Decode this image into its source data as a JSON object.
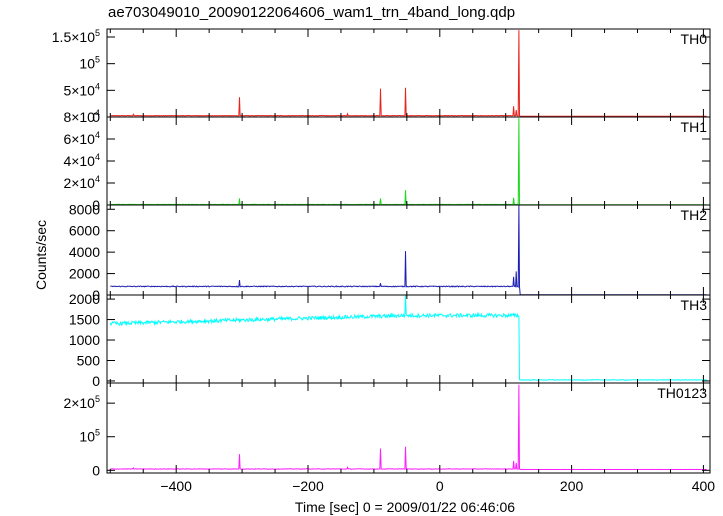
{
  "chart_data": {
    "type": "line",
    "title": "ae703049010_20090122064606_wam1_trn_4band_long.qdp",
    "xlabel": "Time [sec] 0 = 2009/01/22 06:46:06",
    "ylabel": "Counts/sec",
    "xlim": [
      -505,
      410
    ],
    "x_ticks": [
      {
        "value": -400,
        "label": "−400"
      },
      {
        "value": -200,
        "label": "−200"
      },
      {
        "value": 0,
        "label": "0"
      },
      {
        "value": 200,
        "label": "200"
      },
      {
        "value": 400,
        "label": "400"
      }
    ],
    "grid": false,
    "legend": "none",
    "panels": [
      {
        "name": "TH0",
        "color": "#e8231e",
        "ylim": [
          0,
          165000
        ],
        "y_ticks": [
          {
            "value": 0,
            "base": "0",
            "exp": ""
          },
          {
            "value": 50000,
            "base": "5×10",
            "exp": "4"
          },
          {
            "value": 100000,
            "base": "10",
            "exp": "5"
          },
          {
            "value": 150000,
            "base": "1.5×10",
            "exp": "5"
          }
        ],
        "baseline": 2500,
        "noise": 400,
        "step_time": 122,
        "after": 1500,
        "spikes": [
          [
            -465,
            5000
          ],
          [
            -304,
            37000
          ],
          [
            -140,
            6000
          ],
          [
            -90,
            53000
          ],
          [
            -52,
            55000
          ],
          [
            112,
            20000
          ],
          [
            116,
            13000
          ],
          [
            120,
            163000
          ]
        ]
      },
      {
        "name": "TH1",
        "color": "#1ed81e",
        "ylim": [
          0,
          80000
        ],
        "y_ticks": [
          {
            "value": 0,
            "base": "0",
            "exp": ""
          },
          {
            "value": 20000,
            "base": "2×10",
            "exp": "4"
          },
          {
            "value": 40000,
            "base": "4×10",
            "exp": "4"
          },
          {
            "value": 60000,
            "base": "6×10",
            "exp": "4"
          },
          {
            "value": 80000,
            "base": "8×10",
            "exp": "4"
          }
        ],
        "baseline": 500,
        "noise": 120,
        "step_time": 122,
        "after": 300,
        "spikes": [
          [
            -304,
            6000
          ],
          [
            -90,
            6000
          ],
          [
            -52,
            13500
          ],
          [
            112,
            6500
          ],
          [
            120,
            79000
          ]
        ]
      },
      {
        "name": "TH2",
        "color": "#1e1eb4",
        "ylim": [
          0,
          8400
        ],
        "y_ticks": [
          {
            "value": 0,
            "base": "0",
            "exp": ""
          },
          {
            "value": 2000,
            "base": "2000",
            "exp": ""
          },
          {
            "value": 4000,
            "base": "4000",
            "exp": ""
          },
          {
            "value": 6000,
            "base": "6000",
            "exp": ""
          },
          {
            "value": 8000,
            "base": "8000",
            "exp": ""
          }
        ],
        "baseline": 800,
        "noise": 40,
        "step_time": 122,
        "after": 20,
        "spikes": [
          [
            -304,
            1400
          ],
          [
            -90,
            1100
          ],
          [
            -52,
            4100
          ],
          [
            112,
            1700
          ],
          [
            116,
            2200
          ],
          [
            120,
            8400
          ]
        ]
      },
      {
        "name": "TH3",
        "color": "#00ffff",
        "ylim": [
          -50,
          2100
        ],
        "y_ticks": [
          {
            "value": 0,
            "base": "0",
            "exp": ""
          },
          {
            "value": 500,
            "base": "500",
            "exp": ""
          },
          {
            "value": 1000,
            "base": "1000",
            "exp": ""
          },
          {
            "value": 1500,
            "base": "1500",
            "exp": ""
          },
          {
            "value": 2000,
            "base": "2000",
            "exp": ""
          }
        ],
        "baseline": 1400,
        "baseline_end": 1600,
        "noise": 45,
        "step_time": 121,
        "after": 25,
        "spikes": [
          [
            -52,
            2100
          ]
        ]
      },
      {
        "name": "TH0123",
        "color": "#ff1eff",
        "ylim": [
          -8000,
          260000
        ],
        "y_ticks": [
          {
            "value": 0,
            "base": "0",
            "exp": ""
          },
          {
            "value": 100000,
            "base": "10",
            "exp": "5"
          },
          {
            "value": 200000,
            "base": "2×10",
            "exp": "5"
          }
        ],
        "baseline": 4000,
        "noise": 700,
        "step_time": 122,
        "after": 2500,
        "spikes": [
          [
            -465,
            7000
          ],
          [
            -304,
            48000
          ],
          [
            -140,
            9000
          ],
          [
            -90,
            65000
          ],
          [
            -52,
            70000
          ],
          [
            112,
            28000
          ],
          [
            116,
            22000
          ],
          [
            120,
            255000
          ]
        ]
      }
    ]
  }
}
